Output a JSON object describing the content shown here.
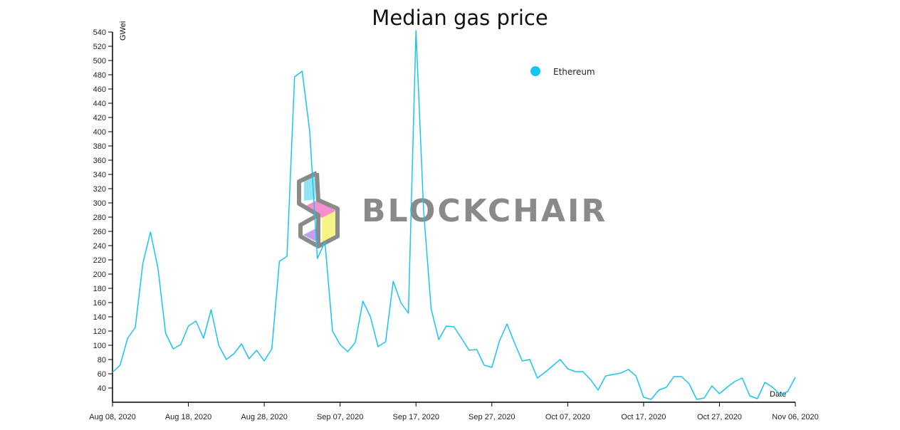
{
  "chart_data": {
    "type": "line",
    "title": "Median gas price",
    "ylabel": "GWei",
    "xlabel": "Date",
    "ylim": [
      20,
      542
    ],
    "xlim": [
      "2020-08-08",
      "2020-11-06"
    ],
    "y_ticks": [
      40,
      60,
      80,
      100,
      120,
      140,
      160,
      180,
      200,
      220,
      240,
      260,
      280,
      300,
      320,
      340,
      360,
      380,
      400,
      420,
      440,
      460,
      480,
      500,
      520,
      540
    ],
    "x_ticks": [
      "Aug 08, 2020",
      "Aug 18, 2020",
      "Aug 28, 2020",
      "Sep 07, 2020",
      "Sep 17, 2020",
      "Sep 27, 2020",
      "Oct 07, 2020",
      "Oct 17, 2020",
      "Oct 27, 2020",
      "Nov 06, 2020"
    ],
    "legend": {
      "position": "top-right"
    },
    "watermark": "BLOCKCHAIR",
    "colors": {
      "line": "#17c5f1",
      "legend_dot": "#17c5f1",
      "watermark": "#8a8a8a",
      "axis": "#000000"
    },
    "series": [
      {
        "name": "Ethereum",
        "x": [
          "2020-08-08",
          "2020-08-09",
          "2020-08-10",
          "2020-08-11",
          "2020-08-12",
          "2020-08-13",
          "2020-08-14",
          "2020-08-15",
          "2020-08-16",
          "2020-08-17",
          "2020-08-18",
          "2020-08-19",
          "2020-08-20",
          "2020-08-21",
          "2020-08-22",
          "2020-08-23",
          "2020-08-24",
          "2020-08-25",
          "2020-08-26",
          "2020-08-27",
          "2020-08-28",
          "2020-08-29",
          "2020-08-30",
          "2020-08-31",
          "2020-09-01",
          "2020-09-02",
          "2020-09-03",
          "2020-09-04",
          "2020-09-05",
          "2020-09-06",
          "2020-09-07",
          "2020-09-08",
          "2020-09-09",
          "2020-09-10",
          "2020-09-11",
          "2020-09-12",
          "2020-09-13",
          "2020-09-14",
          "2020-09-15",
          "2020-09-16",
          "2020-09-17",
          "2020-09-18",
          "2020-09-19",
          "2020-09-20",
          "2020-09-21",
          "2020-09-22",
          "2020-09-23",
          "2020-09-24",
          "2020-09-25",
          "2020-09-26",
          "2020-09-27",
          "2020-09-28",
          "2020-09-29",
          "2020-09-30",
          "2020-10-01",
          "2020-10-02",
          "2020-10-03",
          "2020-10-04",
          "2020-10-05",
          "2020-10-06",
          "2020-10-07",
          "2020-10-08",
          "2020-10-09",
          "2020-10-10",
          "2020-10-11",
          "2020-10-12",
          "2020-10-13",
          "2020-10-14",
          "2020-10-15",
          "2020-10-16",
          "2020-10-17",
          "2020-10-18",
          "2020-10-19",
          "2020-10-20",
          "2020-10-21",
          "2020-10-22",
          "2020-10-23",
          "2020-10-24",
          "2020-10-25",
          "2020-10-26",
          "2020-10-27",
          "2020-10-28",
          "2020-10-29",
          "2020-10-30",
          "2020-10-31",
          "2020-11-01",
          "2020-11-02",
          "2020-11-03",
          "2020-11-04",
          "2020-11-05",
          "2020-11-06"
        ],
        "values": [
          62,
          72,
          110,
          125,
          215,
          259,
          208,
          117,
          95,
          101,
          127,
          134,
          110,
          150,
          100,
          80,
          88,
          102,
          81,
          93,
          78,
          95,
          218,
          225,
          477,
          485,
          400,
          222,
          245,
          120,
          101,
          91,
          104,
          162,
          140,
          98,
          105,
          190,
          160,
          145,
          542,
          290,
          151,
          108,
          127,
          126,
          110,
          93,
          94,
          72,
          69,
          106,
          130,
          103,
          78,
          80,
          54,
          62,
          71,
          80,
          67,
          63,
          63,
          52,
          37,
          57,
          59,
          61,
          66,
          57,
          27,
          24,
          37,
          41,
          56,
          56,
          46,
          24,
          26,
          43,
          32,
          41,
          49,
          54,
          29,
          25,
          48,
          41,
          31,
          35,
          55
        ]
      }
    ]
  }
}
